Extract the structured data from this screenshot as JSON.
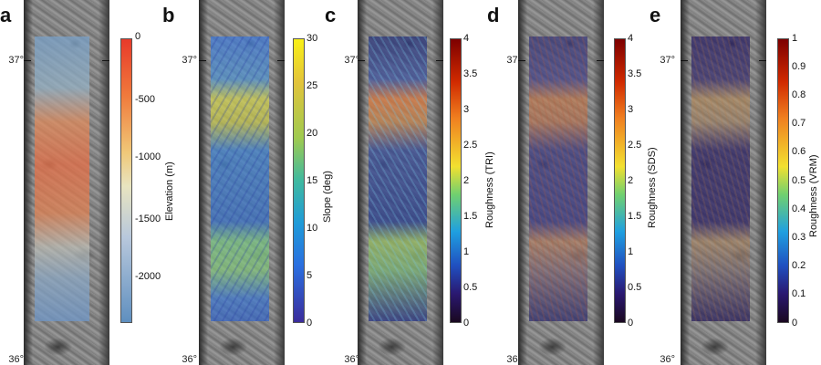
{
  "latitudes": {
    "top": "37°",
    "bottom": "36°"
  },
  "panels": [
    {
      "letter": "a",
      "colorbar": {
        "title": "Elevation (m)",
        "ticks": [
          "0",
          "-500",
          "-1000",
          "-1500",
          "-2000"
        ],
        "tick_fractions": [
          0,
          0.222,
          0.444,
          0.667,
          0.889
        ],
        "colormap_name": "red-yellow-blue"
      }
    },
    {
      "letter": "b",
      "colorbar": {
        "title": "Slope (deg)",
        "ticks": [
          "30",
          "25",
          "20",
          "15",
          "10",
          "5",
          "0"
        ],
        "tick_fractions": [
          0,
          0.1667,
          0.3333,
          0.5,
          0.6667,
          0.8333,
          1
        ],
        "colormap_name": "parula"
      }
    },
    {
      "letter": "c",
      "colorbar": {
        "title": "Roughness (TRI)",
        "ticks": [
          "4",
          "3.5",
          "3",
          "2.5",
          "2",
          "1.5",
          "1",
          "0.5",
          "0"
        ],
        "tick_fractions": [
          0,
          0.125,
          0.25,
          0.375,
          0.5,
          0.625,
          0.75,
          0.875,
          1
        ],
        "colormap_name": "jet-dark"
      }
    },
    {
      "letter": "d",
      "colorbar": {
        "title": "Roughness (SDS)",
        "ticks": [
          "4",
          "3.5",
          "3",
          "2.5",
          "2",
          "1.5",
          "1",
          "0.5",
          "0"
        ],
        "tick_fractions": [
          0,
          0.125,
          0.25,
          0.375,
          0.5,
          0.625,
          0.75,
          0.875,
          1
        ],
        "colormap_name": "jet-dark"
      }
    },
    {
      "letter": "e",
      "colorbar": {
        "title": "Roughness (VRM)",
        "ticks": [
          "1",
          "0.9",
          "0.8",
          "0.7",
          "0.6",
          "0.5",
          "0.4",
          "0.3",
          "0.2",
          "0.1",
          "0"
        ],
        "tick_fractions": [
          0,
          0.1,
          0.2,
          0.3,
          0.4,
          0.5,
          0.6,
          0.7,
          0.8,
          0.9,
          1
        ],
        "colormap_name": "jet-dark"
      }
    }
  ]
}
